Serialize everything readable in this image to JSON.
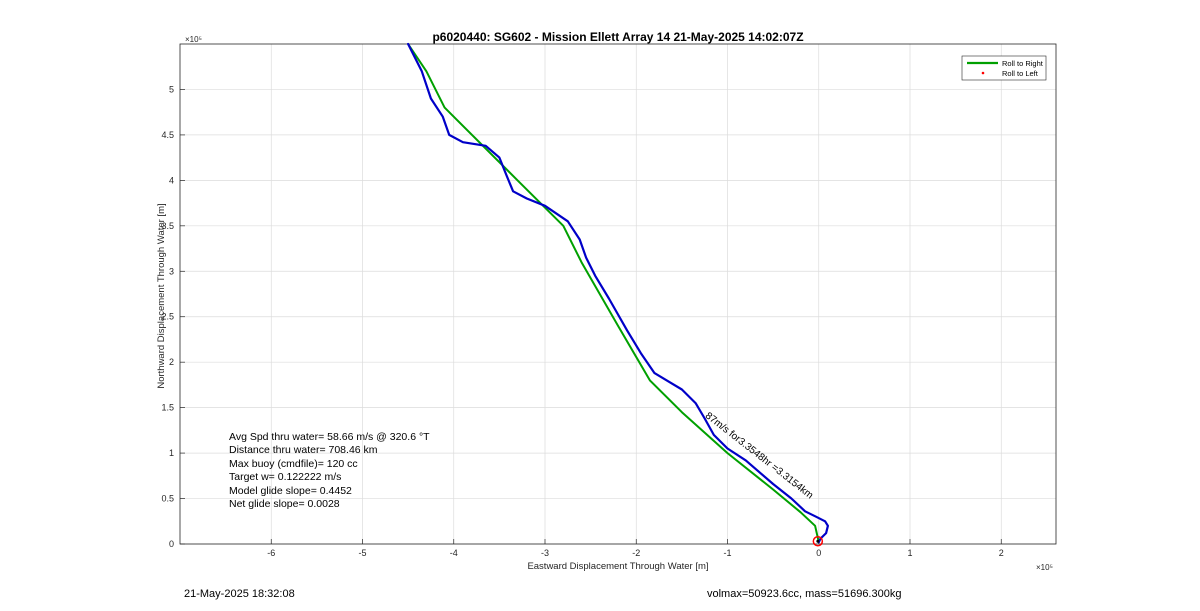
{
  "chart_data": {
    "type": "line",
    "title": "p6020440: SG602 - Mission Ellett Array 14 21-May-2025 14:02:07Z",
    "xlabel": "Eastward Displacement Through Water [m]",
    "ylabel": "Northward Displacement Through Water [m]",
    "x_exponent_label": "×10⁵",
    "y_exponent_label": "×10⁵",
    "x_scale": 100000,
    "y_scale": 100000,
    "xlim": [
      -7,
      2.6
    ],
    "ylim": [
      0,
      5.5
    ],
    "xticks": [
      -6,
      -5,
      -4,
      -3,
      -2,
      -1,
      0,
      1,
      2
    ],
    "xtick_labels": [
      "-6",
      "-5",
      "-4",
      "-3",
      "-2",
      "-1",
      "0",
      "1",
      "2"
    ],
    "yticks": [
      0,
      0.5,
      1,
      1.5,
      2,
      2.5,
      3,
      3.5,
      4,
      4.5,
      5
    ],
    "ytick_labels": [
      "0",
      "0.5",
      "1",
      "1.5",
      "2",
      "2.5",
      "3",
      "3.5",
      "4",
      "4.5",
      "5"
    ],
    "grid": true,
    "legend_position": "top-right",
    "legend": [
      {
        "label": "Roll to Right",
        "color": "#00a000",
        "marker": "line"
      },
      {
        "label": "Roll to Left",
        "color": "#ff0000",
        "marker": "dot"
      }
    ],
    "series": [
      {
        "name": "Roll to Right",
        "color": "#00a000",
        "points": [
          [
            0,
            0.02
          ],
          [
            -0.04,
            0.2
          ],
          [
            -0.2,
            0.35
          ],
          [
            -0.5,
            0.6
          ],
          [
            -1,
            1.0
          ],
          [
            -1.5,
            1.45
          ],
          [
            -1.85,
            1.8
          ],
          [
            -2.2,
            2.4
          ],
          [
            -2.6,
            3.1
          ],
          [
            -2.8,
            3.5
          ],
          [
            -3.3,
            4.0
          ],
          [
            -4.1,
            4.8
          ],
          [
            -4.3,
            5.2
          ],
          [
            -4.5,
            5.5
          ]
        ]
      },
      {
        "name": "",
        "color": "#0000c8",
        "points": [
          [
            0,
            0.02
          ],
          [
            0.02,
            0.06
          ],
          [
            0.08,
            0.12
          ],
          [
            0.1,
            0.2
          ],
          [
            0.07,
            0.25
          ],
          [
            -0.03,
            0.3
          ],
          [
            -0.15,
            0.36
          ],
          [
            -0.3,
            0.5
          ],
          [
            -0.5,
            0.66
          ],
          [
            -0.8,
            0.92
          ],
          [
            -1.0,
            1.05
          ],
          [
            -1.15,
            1.2
          ],
          [
            -1.25,
            1.38
          ],
          [
            -1.35,
            1.55
          ],
          [
            -1.5,
            1.7
          ],
          [
            -1.8,
            1.88
          ],
          [
            -1.95,
            2.1
          ],
          [
            -2.1,
            2.35
          ],
          [
            -2.3,
            2.7
          ],
          [
            -2.45,
            2.95
          ],
          [
            -2.55,
            3.15
          ],
          [
            -2.62,
            3.35
          ],
          [
            -2.75,
            3.55
          ],
          [
            -3.0,
            3.72
          ],
          [
            -3.2,
            3.8
          ],
          [
            -3.35,
            3.88
          ],
          [
            -3.42,
            4.05
          ],
          [
            -3.5,
            4.25
          ],
          [
            -3.65,
            4.38
          ],
          [
            -3.9,
            4.42
          ],
          [
            -4.05,
            4.5
          ],
          [
            -4.12,
            4.7
          ],
          [
            -4.25,
            4.9
          ],
          [
            -4.35,
            5.2
          ],
          [
            -4.5,
            5.5
          ]
        ]
      }
    ],
    "end_markers": [
      {
        "x": -0.01,
        "y": 0.03,
        "color": "#ff0000",
        "shape": "circle"
      }
    ],
    "path_annotation": {
      "text": "87m/s for3.3548hr =3.3154km",
      "at_x": -1.25,
      "at_y": 1.4,
      "angle_deg": 38
    },
    "stats_text": [
      "Avg Spd thru water= 58.66 m/s @ 320.6 °T",
      "Distance thru water= 708.46 km",
      "Max buoy (cmdfile)= 120 cc",
      "Target w= 0.122222 m/s",
      "Model glide slope= 0.4452",
      "Net glide slope= 0.0028"
    ]
  },
  "footer": {
    "timestamp": "21-May-2025 18:32:08",
    "vehicle_info": "volmax=50923.6cc, mass=51696.300kg"
  }
}
